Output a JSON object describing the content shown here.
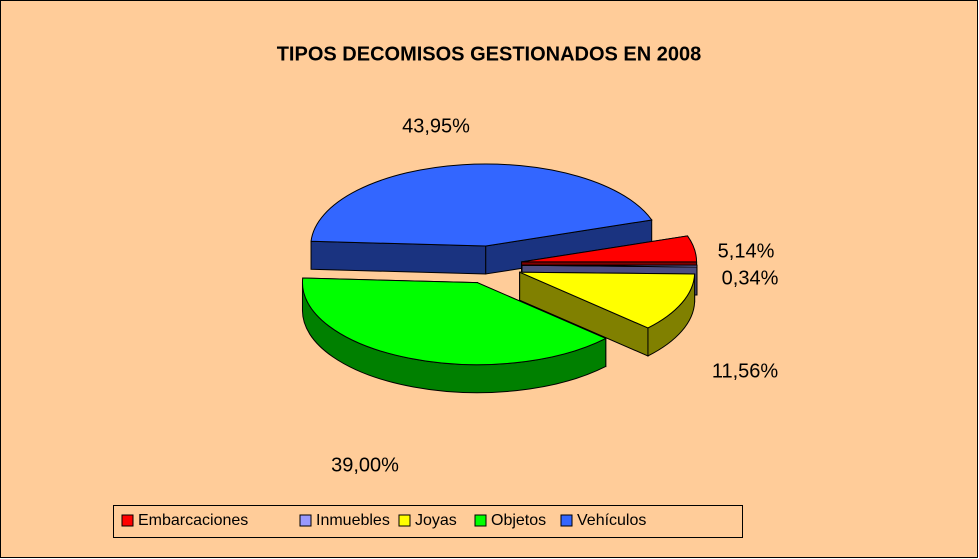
{
  "chart_data": {
    "type": "pie",
    "title": "TIPOS DECOMISOS GESTIONADOS EN 2008",
    "categories": [
      "Embarcaciones",
      "Inmuebles",
      "Joyas",
      "Objetos",
      "Vehículos"
    ],
    "values": [
      5.14,
      0.34,
      11.56,
      39.0,
      43.95
    ],
    "value_labels": [
      "5,14%",
      "0,34%",
      "11,56%",
      "39,00%",
      "43,95%"
    ],
    "colors": [
      "#ff0000",
      "#9999ff",
      "#ffff00",
      "#00ff00",
      "#3366ff"
    ],
    "legend": "bottom"
  }
}
